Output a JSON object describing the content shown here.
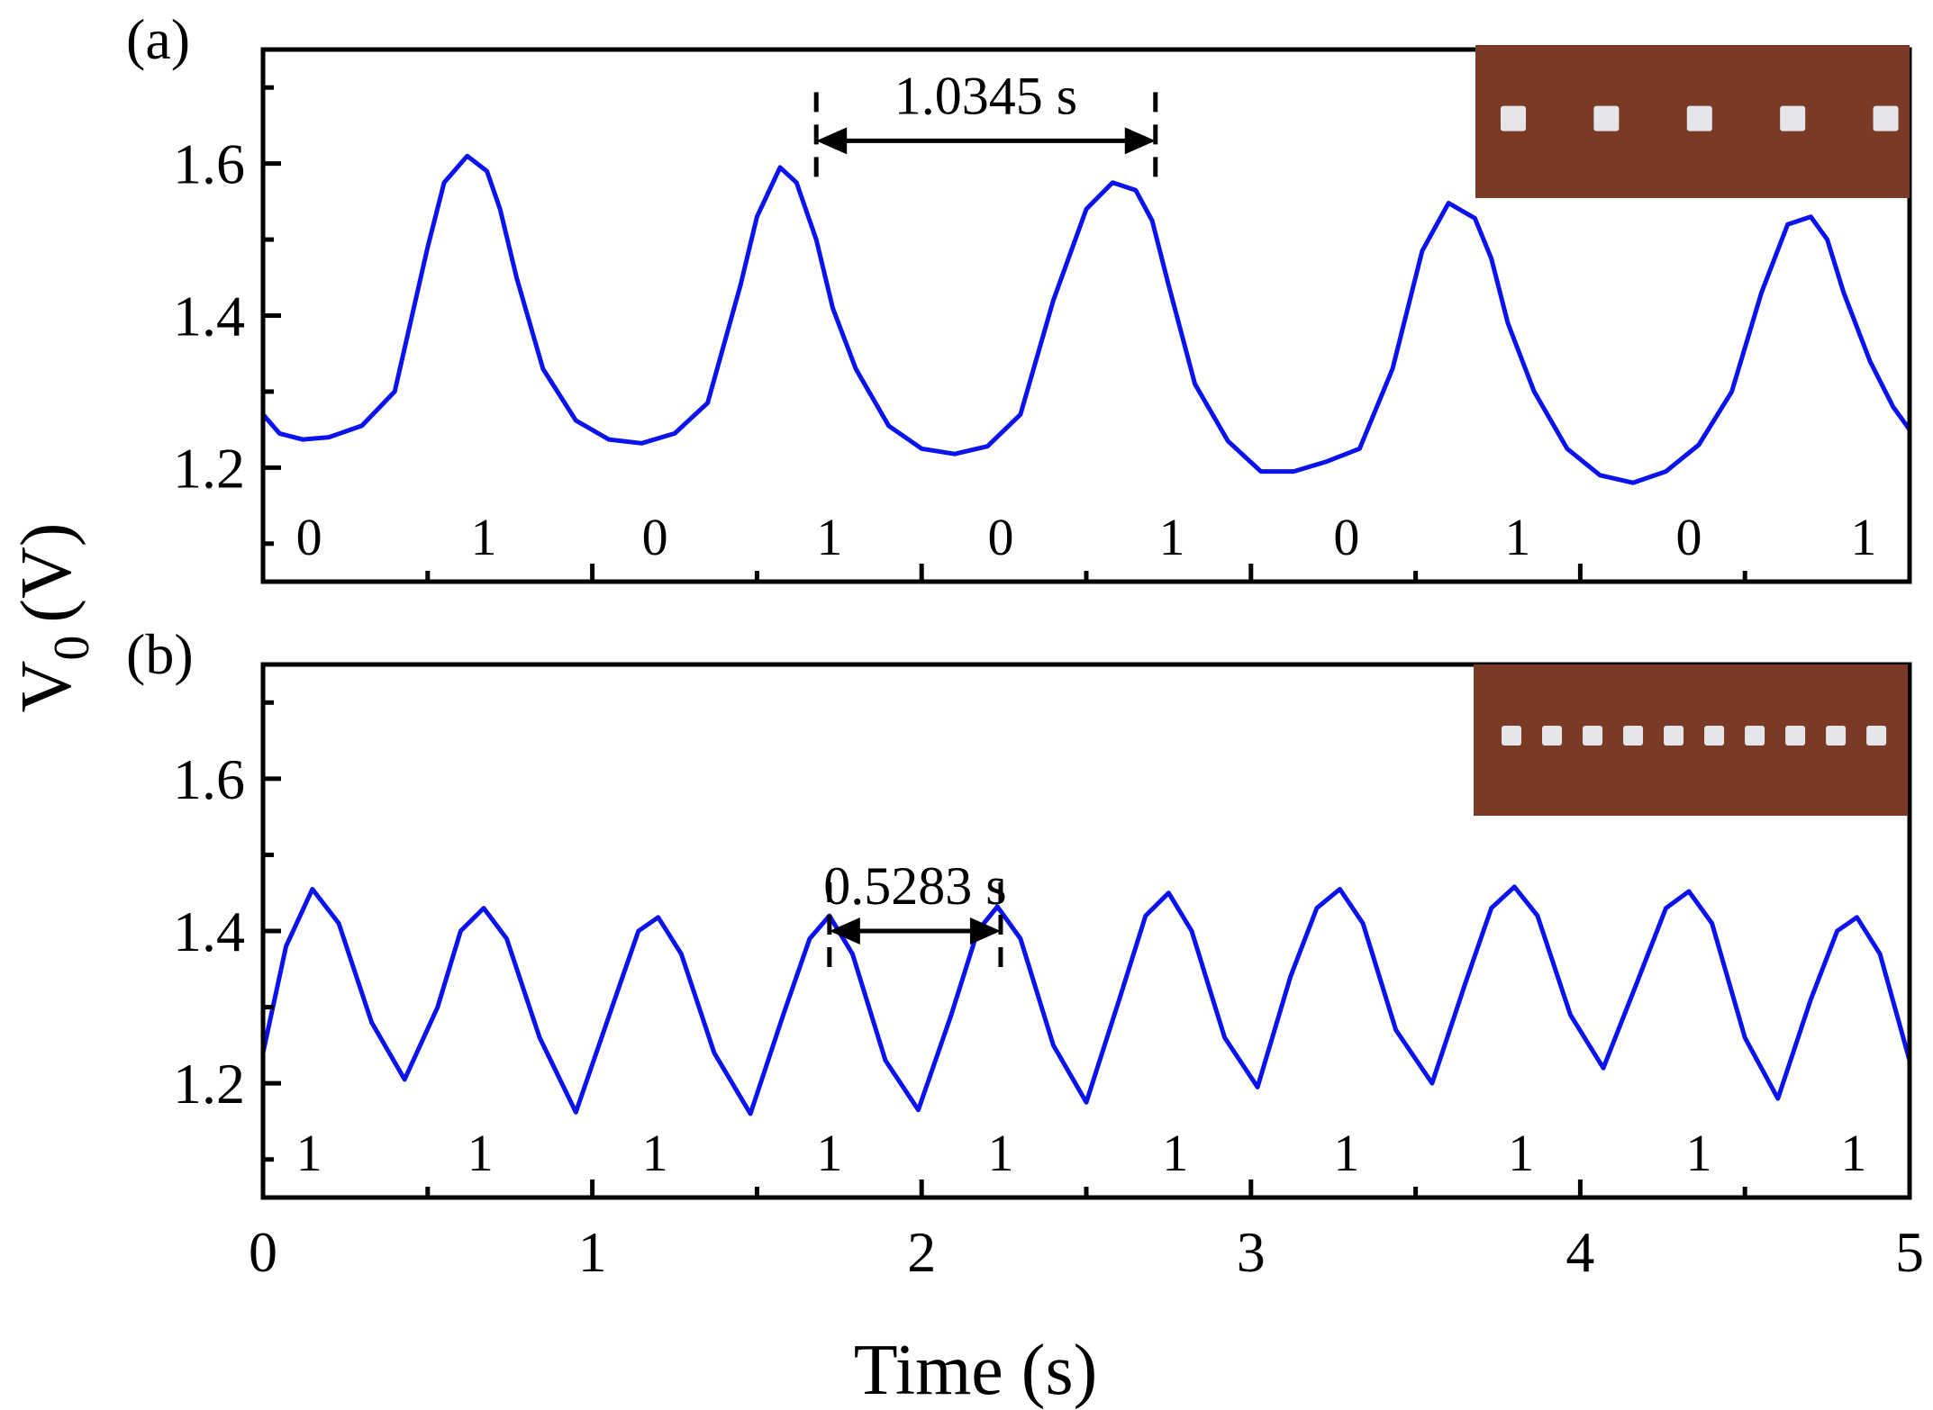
{
  "chart_data": [
    {
      "panel_label": "(a)",
      "type": "line",
      "xlim": [
        0,
        5
      ],
      "ylim": [
        1.05,
        1.75
      ],
      "y_ticks": [
        1.2,
        1.4,
        1.6
      ],
      "y_tick_labels": [
        "1.2",
        "1.4",
        "1.6"
      ],
      "series": [
        {
          "color": "#0a12ee",
          "x": [
            0,
            0.05,
            0.12,
            0.2,
            0.3,
            0.4,
            0.5,
            0.55,
            0.62,
            0.68,
            0.72,
            0.77,
            0.85,
            0.95,
            1.05,
            1.15,
            1.25,
            1.35,
            1.45,
            1.5,
            1.57,
            1.62,
            1.68,
            1.73,
            1.8,
            1.9,
            2.0,
            2.1,
            2.2,
            2.3,
            2.4,
            2.5,
            2.58,
            2.65,
            2.7,
            2.75,
            2.83,
            2.93,
            3.03,
            3.13,
            3.23,
            3.33,
            3.43,
            3.52,
            3.6,
            3.68,
            3.73,
            3.78,
            3.86,
            3.96,
            4.06,
            4.16,
            4.26,
            4.36,
            4.46,
            4.55,
            4.63,
            4.7,
            4.75,
            4.8,
            4.88,
            4.95,
            5.0
          ],
          "y": [
            1.27,
            1.245,
            1.237,
            1.24,
            1.255,
            1.3,
            1.49,
            1.575,
            1.61,
            1.59,
            1.54,
            1.45,
            1.33,
            1.262,
            1.237,
            1.232,
            1.245,
            1.285,
            1.44,
            1.53,
            1.595,
            1.575,
            1.5,
            1.41,
            1.33,
            1.255,
            1.225,
            1.218,
            1.228,
            1.27,
            1.42,
            1.54,
            1.575,
            1.565,
            1.525,
            1.44,
            1.31,
            1.235,
            1.195,
            1.195,
            1.208,
            1.225,
            1.33,
            1.485,
            1.548,
            1.528,
            1.475,
            1.39,
            1.3,
            1.225,
            1.19,
            1.18,
            1.195,
            1.23,
            1.3,
            1.43,
            1.52,
            1.53,
            1.5,
            1.43,
            1.34,
            1.28,
            1.25
          ]
        }
      ],
      "bit_labels": [
        {
          "text": "0",
          "x": 0.14
        },
        {
          "text": "1",
          "x": 0.67
        },
        {
          "text": "0",
          "x": 1.19
        },
        {
          "text": "1",
          "x": 1.72
        },
        {
          "text": "0",
          "x": 2.24
        },
        {
          "text": "1",
          "x": 2.76
        },
        {
          "text": "0",
          "x": 3.29
        },
        {
          "text": "1",
          "x": 3.81
        },
        {
          "text": "0",
          "x": 4.33
        },
        {
          "text": "1",
          "x": 4.86
        }
      ],
      "period_annotation": {
        "label": "1.0345 s",
        "x_start": 1.68,
        "x_end": 2.71,
        "y": 1.63
      }
    },
    {
      "panel_label": "(b)",
      "type": "line",
      "xlim": [
        0,
        5
      ],
      "ylim": [
        1.05,
        1.75
      ],
      "y_ticks": [
        1.2,
        1.4,
        1.6
      ],
      "y_tick_labels": [
        "1.2",
        "1.4",
        "1.6"
      ],
      "series": [
        {
          "color": "#0a12ee",
          "x": [
            0,
            0.07,
            0.15,
            0.23,
            0.33,
            0.43,
            0.53,
            0.6,
            0.67,
            0.74,
            0.84,
            0.95,
            1.06,
            1.14,
            1.2,
            1.27,
            1.37,
            1.48,
            1.58,
            1.66,
            1.72,
            1.79,
            1.89,
            1.99,
            2.09,
            2.17,
            2.23,
            2.3,
            2.4,
            2.5,
            2.6,
            2.68,
            2.75,
            2.82,
            2.92,
            3.02,
            3.12,
            3.2,
            3.27,
            3.34,
            3.44,
            3.55,
            3.65,
            3.73,
            3.8,
            3.87,
            3.97,
            4.07,
            4.17,
            4.26,
            4.33,
            4.4,
            4.5,
            4.6,
            4.7,
            4.78,
            4.84,
            4.91,
            5.0
          ],
          "y": [
            1.24,
            1.38,
            1.455,
            1.41,
            1.28,
            1.205,
            1.3,
            1.4,
            1.43,
            1.39,
            1.26,
            1.162,
            1.3,
            1.4,
            1.418,
            1.37,
            1.24,
            1.16,
            1.29,
            1.39,
            1.42,
            1.37,
            1.23,
            1.165,
            1.29,
            1.4,
            1.432,
            1.39,
            1.25,
            1.175,
            1.31,
            1.42,
            1.45,
            1.4,
            1.26,
            1.195,
            1.34,
            1.43,
            1.455,
            1.41,
            1.27,
            1.2,
            1.33,
            1.43,
            1.458,
            1.42,
            1.29,
            1.22,
            1.33,
            1.43,
            1.452,
            1.41,
            1.26,
            1.18,
            1.31,
            1.4,
            1.418,
            1.37,
            1.23
          ]
        }
      ],
      "bit_labels": [
        {
          "text": "1",
          "x": 0.14
        },
        {
          "text": "1",
          "x": 0.66
        },
        {
          "text": "1",
          "x": 1.19
        },
        {
          "text": "1",
          "x": 1.72
        },
        {
          "text": "1",
          "x": 2.24
        },
        {
          "text": "1",
          "x": 2.77
        },
        {
          "text": "1",
          "x": 3.29
        },
        {
          "text": "1",
          "x": 3.82
        },
        {
          "text": "1",
          "x": 4.36
        },
        {
          "text": "1",
          "x": 4.83
        }
      ],
      "period_annotation": {
        "label": "0.5283 s",
        "x_start": 1.72,
        "x_end": 2.24,
        "y": 1.4
      }
    }
  ],
  "shared_axes": {
    "xlabel": "Time (s)",
    "ylabel_main": "V",
    "ylabel_sub": "0",
    "ylabel_unit": "(V)",
    "x_ticks": [
      0,
      1,
      2,
      3,
      4,
      5
    ],
    "x_tick_labels": [
      "0",
      "1",
      "2",
      "3",
      "4",
      "5"
    ]
  },
  "insets": [
    {
      "panel": "(a)",
      "dot_count": 5,
      "background": "#7a3a26",
      "dot_color": "#e4e6ea"
    },
    {
      "panel": "(b)",
      "dot_count": 10,
      "background": "#7a3a26",
      "dot_color": "#e4e6ea"
    }
  ]
}
